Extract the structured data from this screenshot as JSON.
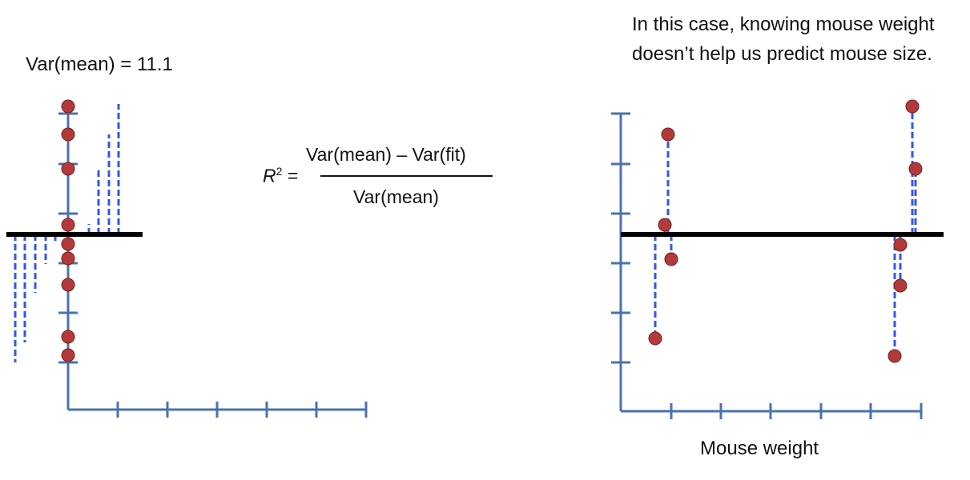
{
  "left": {
    "label": "Var(mean) = 11.1"
  },
  "formula": {
    "lhs": "R",
    "exponent": "2",
    "equals": "=",
    "numerator": "Var(mean) – Var(fit)",
    "denominator": "Var(mean)"
  },
  "right": {
    "caption": "In this case, knowing mouse weight doesn’t help us predict mouse size.",
    "xlabel": "Mouse weight"
  },
  "colors": {
    "axis": "#4a72b0",
    "point": "#b33a3a",
    "residual": "#3355ee",
    "mean_line": "#000000"
  }
}
